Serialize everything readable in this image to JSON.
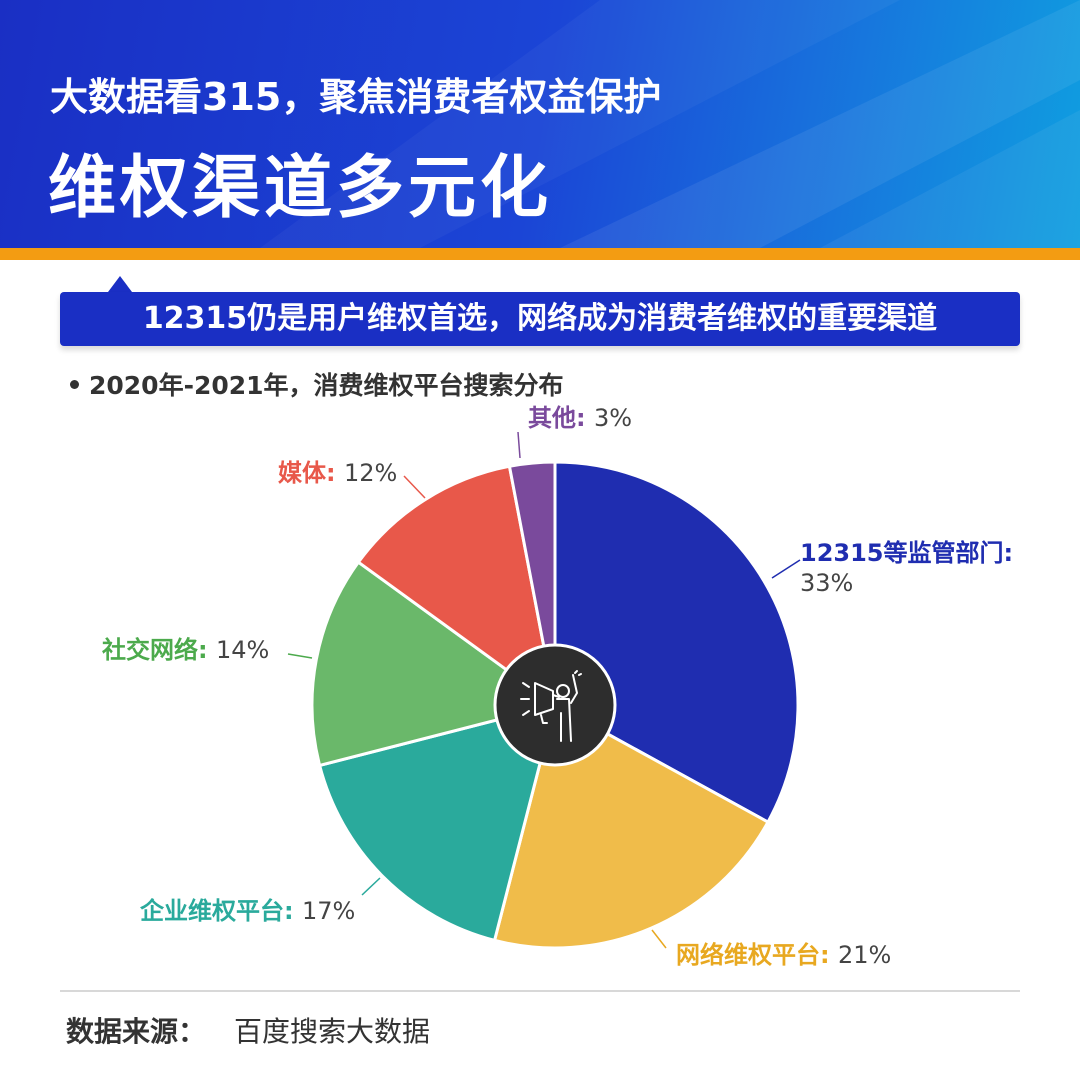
{
  "header": {
    "supertitle": "大数据看315，聚焦消费者权益保护",
    "title": "维权渠道多元化"
  },
  "banner": {
    "text": "12315仍是用户维权首选，网络成为消费者维权的重要渠道"
  },
  "chart_data": {
    "type": "pie",
    "title": "2020年-2021年，消费维权平台搜索分布",
    "slices": [
      {
        "label": "12315等监管部门",
        "value": 33,
        "pct_text": "33%",
        "color": "#1f2db0"
      },
      {
        "label": "网络维权平台",
        "value": 21,
        "pct_text": "21%",
        "color": "#f0bc4a"
      },
      {
        "label": "企业维权平台",
        "value": 17,
        "pct_text": "17%",
        "color": "#2aaa9c"
      },
      {
        "label": "社交网络",
        "value": 14,
        "pct_text": "14%",
        "color": "#6ab86a"
      },
      {
        "label": "媒体",
        "value": 12,
        "pct_text": "12%",
        "color": "#e8584a"
      },
      {
        "label": "其他",
        "value": 3,
        "pct_text": "3%",
        "color": "#7a4a9c"
      }
    ],
    "label_colors": [
      "#1f2db0",
      "#e8a820",
      "#2aaa9c",
      "#4caa4c",
      "#e8584a",
      "#7a4a9c"
    ],
    "center_icon": "megaphone-protest-icon"
  },
  "footer": {
    "source_label": "数据来源：",
    "source_value": "百度搜索大数据"
  }
}
